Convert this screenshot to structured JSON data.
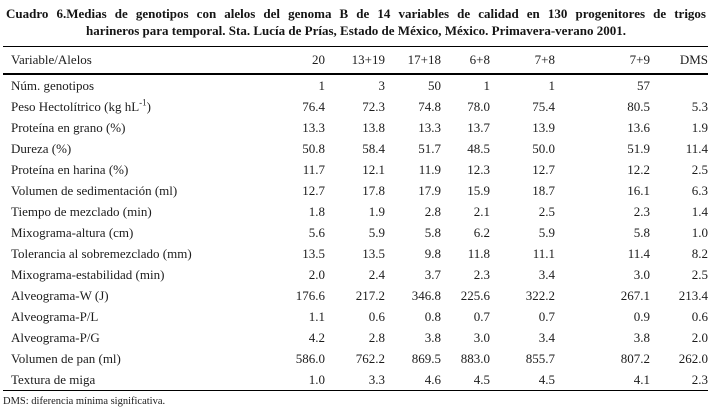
{
  "page": {
    "background": "#ffffff",
    "text_color": "#1c1c1c",
    "rule_color": "#000000"
  },
  "title": {
    "line1": "Cuadro 6.Medias de genotipos con alelos del genoma B de 14 variables de calidad en 130 progenitores de trigos",
    "line2": "harineros para temporal. Sta. Lucía de Prías, Estado de México, México. Primavera-verano 2001."
  },
  "table": {
    "columns": [
      "Variable/Alelos",
      "20",
      "13+19",
      "17+18",
      "6+8",
      "7+8",
      "7+9",
      "DMS"
    ],
    "rows": [
      {
        "label": "Núm. genotipos",
        "values": [
          "1",
          "3",
          "50",
          "1",
          "1",
          "57",
          ""
        ]
      },
      {
        "label": "Peso Hectolítrico (kg hL^-1^)",
        "values": [
          "76.4",
          "72.3",
          "74.8",
          "78.0",
          "75.4",
          "80.5",
          "5.3"
        ]
      },
      {
        "label": "Proteína en grano (%)",
        "values": [
          "13.3",
          "13.8",
          "13.3",
          "13.7",
          "13.9",
          "13.6",
          "1.9"
        ]
      },
      {
        "label": "Dureza (%)",
        "values": [
          "50.8",
          "58.4",
          "51.7",
          "48.5",
          "50.0",
          "51.9",
          "11.4"
        ]
      },
      {
        "label": "Proteína en harina (%)",
        "values": [
          "11.7",
          "12.1",
          "11.9",
          "12.3",
          "12.7",
          "12.2",
          "2.5"
        ]
      },
      {
        "label": "Volumen de sedimentación (ml)",
        "values": [
          "12.7",
          "17.8",
          "17.9",
          "15.9",
          "18.7",
          "16.1",
          "6.3"
        ]
      },
      {
        "label": "Tiempo de mezclado (min)",
        "values": [
          "1.8",
          "1.9",
          "2.8",
          "2.1",
          "2.5",
          "2.3",
          "1.4"
        ]
      },
      {
        "label": "Mixograma-altura (cm)",
        "values": [
          "5.6",
          "5.9",
          "5.8",
          "6.2",
          "5.9",
          "5.8",
          "1.0"
        ]
      },
      {
        "label": "Tolerancia al sobremezclado (mm)",
        "values": [
          "13.5",
          "13.5",
          "9.8",
          "11.8",
          "11.1",
          "11.4",
          "8.2"
        ]
      },
      {
        "label": "Mixograma-estabilidad (min)",
        "values": [
          "2.0",
          "2.4",
          "3.7",
          "2.3",
          "3.4",
          "3.0",
          "2.5"
        ]
      },
      {
        "label": "Alveograma-W (J)",
        "values": [
          "176.6",
          "217.2",
          "346.8",
          "225.6",
          "322.2",
          "267.1",
          "213.4"
        ]
      },
      {
        "label": "Alveograma-P/L",
        "values": [
          "1.1",
          "0.6",
          "0.8",
          "0.7",
          "0.7",
          "0.9",
          "0.6"
        ]
      },
      {
        "label": "Alveograma-P/G",
        "values": [
          "4.2",
          "2.8",
          "3.8",
          "3.0",
          "3.4",
          "3.8",
          "2.0"
        ]
      },
      {
        "label": "Volumen de pan (ml)",
        "values": [
          "586.0",
          "762.2",
          "869.5",
          "883.0",
          "855.7",
          "807.2",
          "262.0"
        ]
      },
      {
        "label": "Textura de miga",
        "values": [
          "1.0",
          "3.3",
          "4.6",
          "4.5",
          "4.5",
          "4.1",
          "2.3"
        ]
      }
    ]
  },
  "footnote": "DMS: diferencia mínima significativa."
}
